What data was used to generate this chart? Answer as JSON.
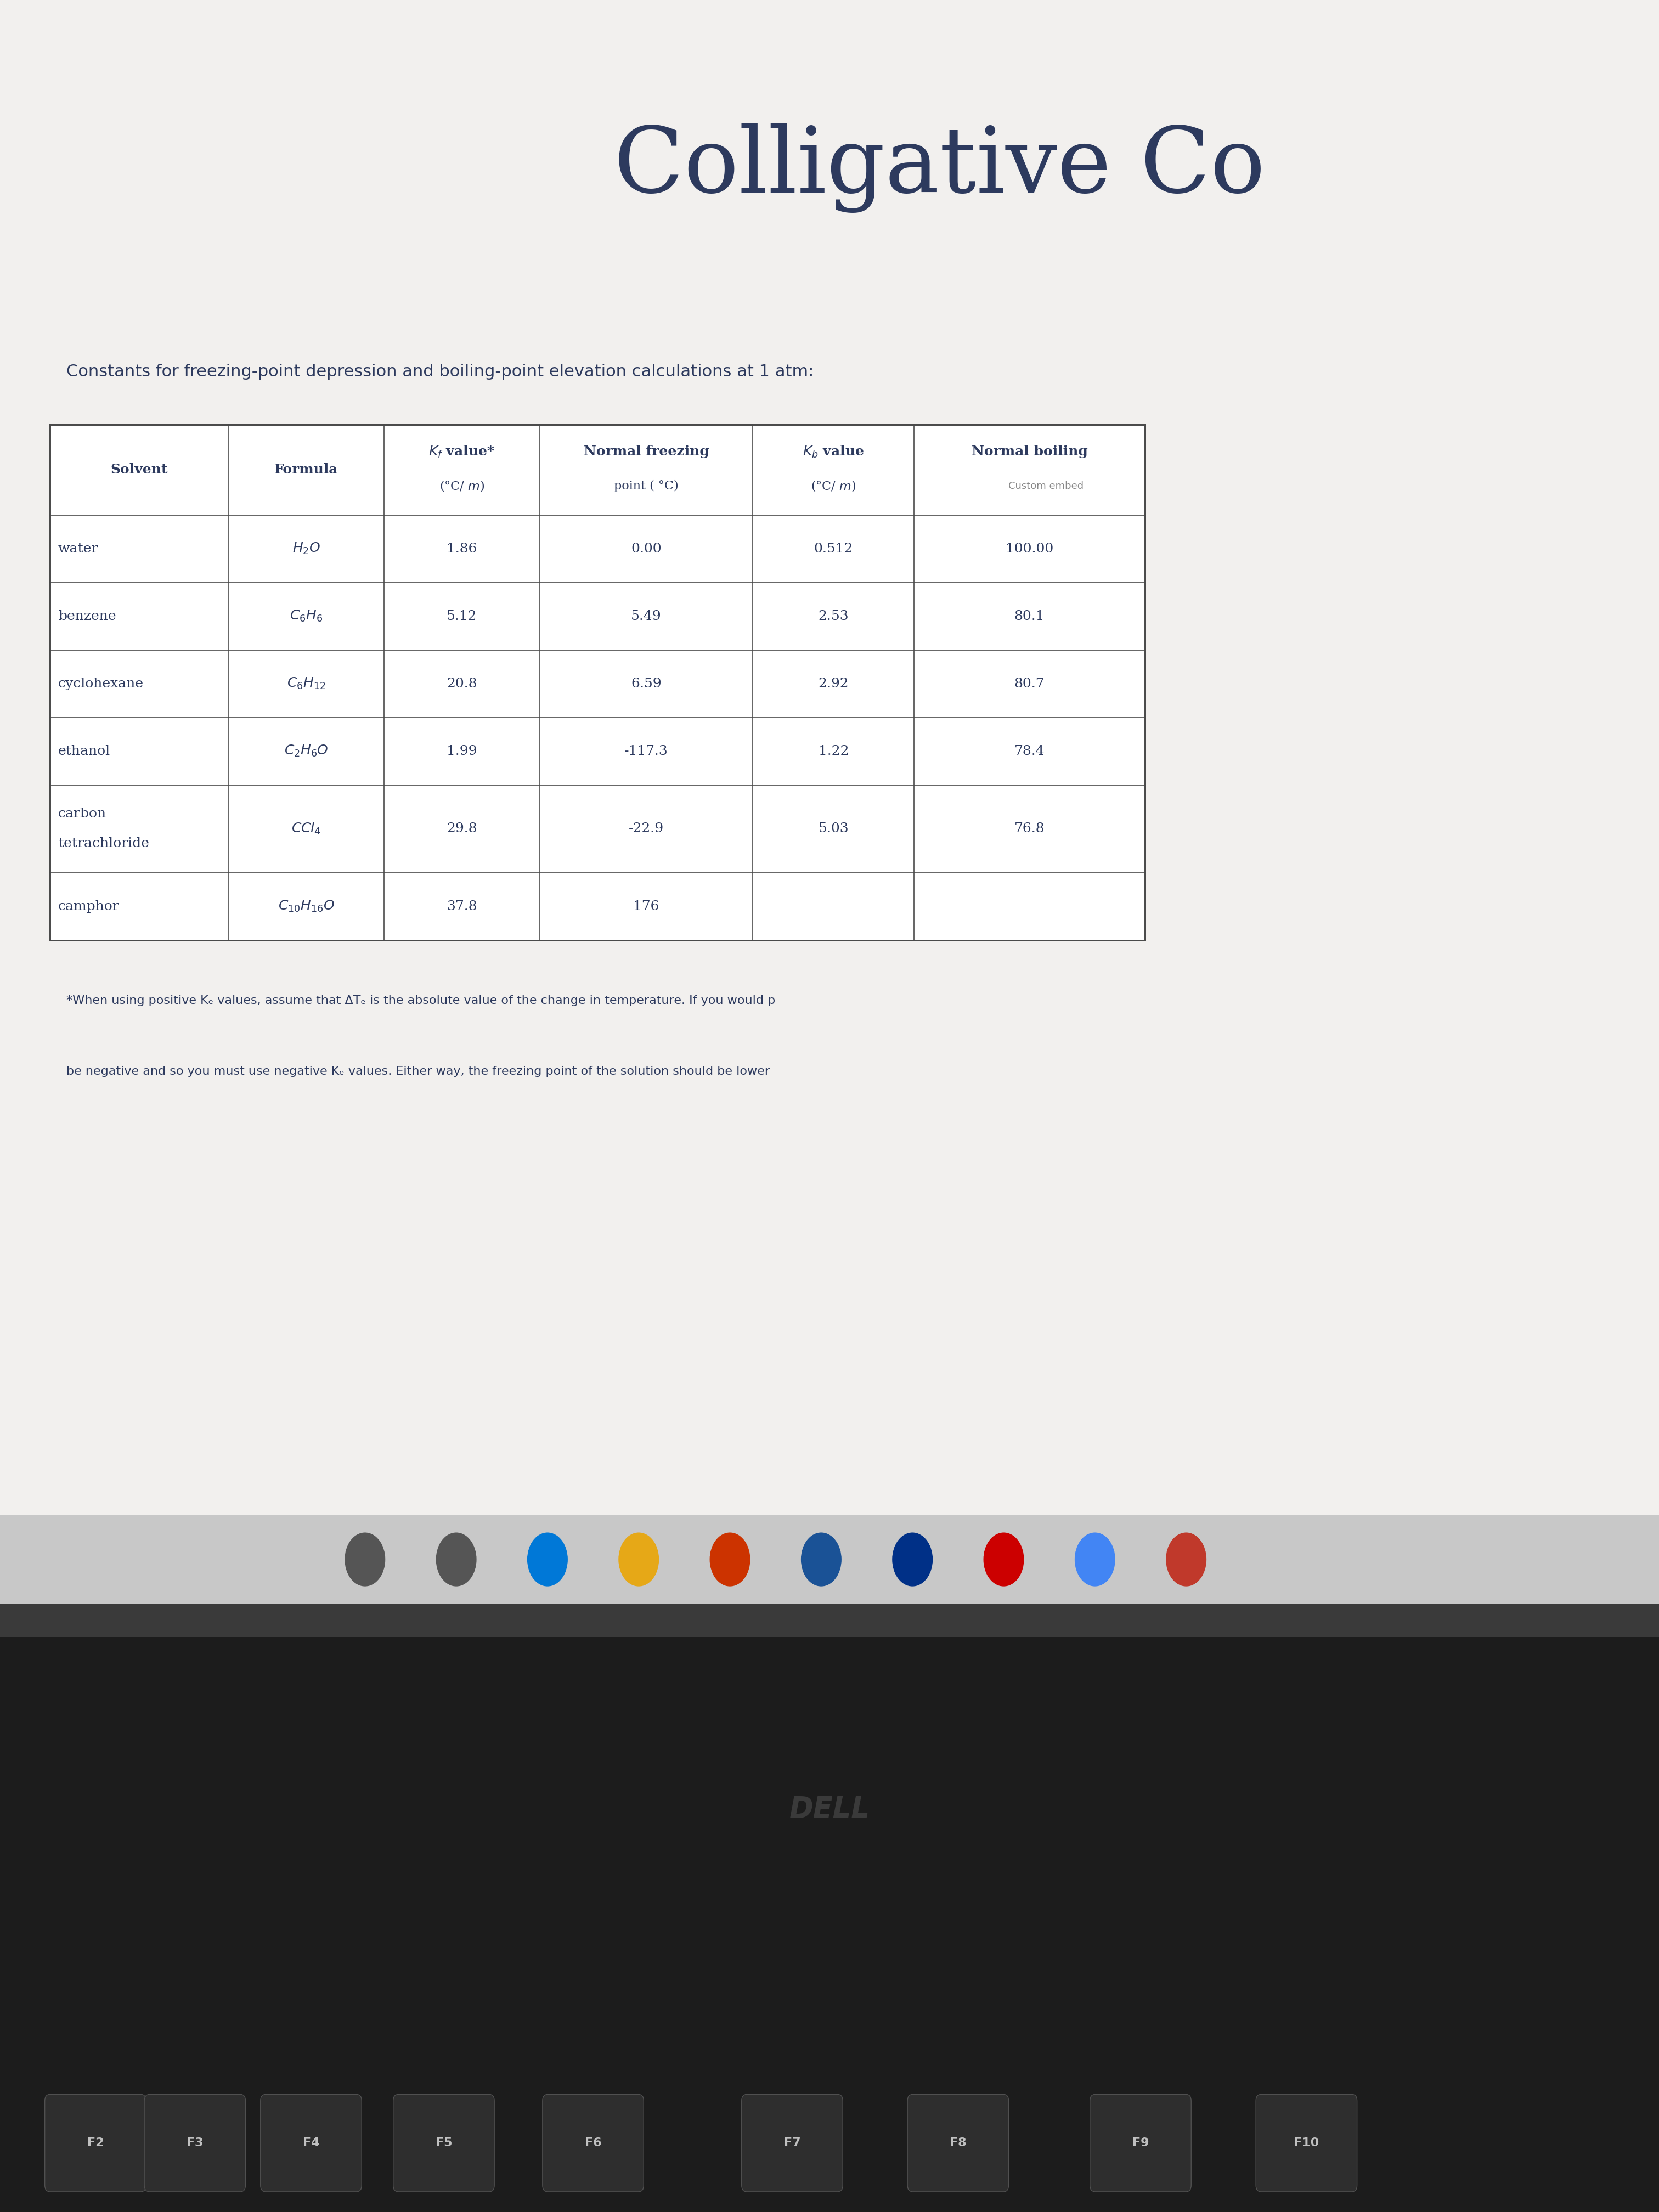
{
  "title": "Colligative Co",
  "subtitle": "Constants for freezing-point depression and boiling-point elevation calculations at 1 atm:",
  "bg_color_top": "#c8c4c0",
  "bg_color_screen": "#e8e5e2",
  "content_bg": "#f2f0ee",
  "taskbar_bg": "#2a2a2a",
  "laptop_body": "#1a1a1a",
  "table_data": [
    [
      "water",
      "H_2O",
      "1.86",
      "0.00",
      "0.512",
      "100.00"
    ],
    [
      "benzene",
      "C_6H_6",
      "5.12",
      "5.49",
      "2.53",
      "80.1"
    ],
    [
      "cyclohexane",
      "C_6H_{12}",
      "20.8",
      "6.59",
      "2.92",
      "80.7"
    ],
    [
      "ethanol",
      "C_2H_6O",
      "1.99",
      "-117.3",
      "1.22",
      "78.4"
    ],
    [
      "carbon|tetrachloride",
      "CCl_4",
      "29.8",
      "-22.9",
      "5.03",
      "76.8"
    ],
    [
      "camphor",
      "C_{10}H_{16}O",
      "37.8",
      "176",
      "",
      ""
    ]
  ],
  "footnote_line1": "*When using positive Kₑ values, assume that ΔTₑ is the absolute value of the change in temperature. If you would p",
  "footnote_line2": "be negative and so you must use negative Kₑ values. Either way, the freezing point of the solution should be lower",
  "title_color": "#2d3a5e",
  "text_color": "#2d3a5e",
  "table_border_color": "#4a4a4a",
  "dell_color": "#3a3a3a",
  "fkey_labels": [
    "F2",
    "F3",
    "F4",
    "F5",
    "F6",
    "F7",
    "F8",
    "F9",
    "F10"
  ],
  "title_fontsize": 120,
  "subtitle_fontsize": 22,
  "header_fontsize": 18,
  "cell_fontsize": 18,
  "footnote_fontsize": 16
}
